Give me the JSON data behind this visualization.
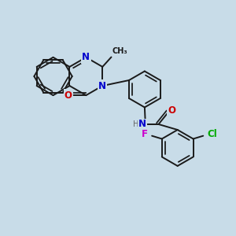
{
  "background_color": "#c8dce8",
  "bond_color": "#1a1a1a",
  "bond_width": 1.4,
  "atom_colors": {
    "N": "#0000cc",
    "O": "#cc0000",
    "F": "#cc00cc",
    "Cl": "#00aa00",
    "C": "#1a1a1a",
    "H": "#666666"
  },
  "font_size": 8.5,
  "figsize": [
    3.0,
    3.0
  ],
  "dpi": 100
}
